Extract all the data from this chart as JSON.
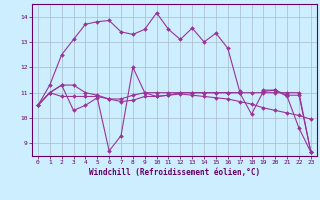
{
  "xlabel": "Windchill (Refroidissement éolien,°C)",
  "bg_color": "#cceeff",
  "grid_color": "#aabbcc",
  "line_color": "#993399",
  "ylim": [
    8.5,
    14.5
  ],
  "xlim": [
    -0.5,
    23.5
  ],
  "yticks": [
    9,
    10,
    11,
    12,
    13,
    14
  ],
  "xticks": [
    0,
    1,
    2,
    3,
    4,
    5,
    6,
    7,
    8,
    9,
    10,
    11,
    12,
    13,
    14,
    15,
    16,
    17,
    18,
    19,
    20,
    21,
    22,
    23
  ],
  "lines": [
    {
      "x": [
        0,
        1,
        2,
        3,
        4,
        5,
        6,
        7,
        8,
        9,
        10,
        11,
        12,
        13,
        14,
        15,
        16,
        17,
        18,
        19,
        20,
        21,
        22,
        23
      ],
      "y": [
        10.5,
        11.3,
        12.5,
        13.1,
        13.7,
        13.8,
        13.85,
        13.4,
        13.3,
        13.5,
        14.15,
        13.5,
        13.1,
        13.55,
        13.0,
        13.35,
        12.75,
        11.05,
        null,
        11.1,
        11.1,
        10.85,
        9.6,
        8.65
      ]
    },
    {
      "x": [
        0,
        1,
        2,
        3,
        4,
        5,
        6,
        7,
        8,
        9,
        10,
        11,
        12,
        13,
        14,
        15,
        16,
        17,
        18,
        19,
        20,
        21,
        22,
        23
      ],
      "y": [
        10.5,
        11.0,
        11.3,
        10.3,
        10.5,
        10.8,
        8.7,
        9.3,
        12.0,
        11.0,
        10.85,
        10.9,
        11.0,
        11.0,
        11.0,
        11.0,
        11.0,
        11.0,
        10.15,
        11.05,
        11.1,
        10.9,
        10.9,
        8.65
      ]
    },
    {
      "x": [
        0,
        1,
        2,
        3,
        4,
        5,
        6,
        7,
        8,
        9,
        10,
        11,
        12,
        13,
        14,
        15,
        16,
        17,
        18,
        19,
        20,
        21,
        22,
        23
      ],
      "y": [
        10.5,
        11.0,
        11.3,
        11.3,
        11.0,
        10.9,
        10.75,
        10.65,
        10.7,
        10.85,
        10.85,
        10.9,
        10.95,
        10.9,
        10.85,
        10.8,
        10.75,
        10.65,
        10.55,
        10.4,
        10.3,
        10.2,
        10.1,
        9.95
      ]
    },
    {
      "x": [
        0,
        1,
        2,
        3,
        4,
        5,
        6,
        7,
        8,
        9,
        10,
        11,
        12,
        13,
        14,
        15,
        16,
        17,
        18,
        19,
        20,
        21,
        22,
        23
      ],
      "y": [
        10.5,
        11.0,
        10.85,
        10.85,
        10.85,
        10.85,
        10.75,
        10.75,
        10.9,
        11.0,
        11.0,
        11.0,
        11.0,
        11.0,
        11.0,
        11.0,
        11.0,
        11.0,
        11.0,
        11.0,
        11.0,
        11.0,
        11.0,
        8.65
      ]
    }
  ]
}
